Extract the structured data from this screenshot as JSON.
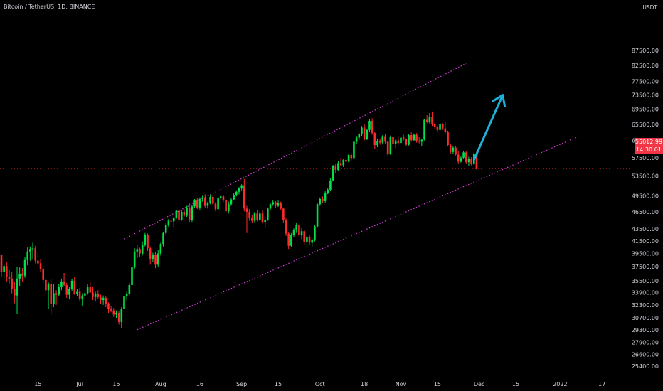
{
  "header": {
    "title": "Bitcoin / TetherUS, 1D, BINANCE",
    "quote_unit": "USDT"
  },
  "price_badge": {
    "price": "55012.99",
    "countdown": "14:30:01"
  },
  "colors": {
    "up": "#00e04a",
    "down": "#ff2b2b",
    "channel": "#d43fd8",
    "arrow": "#1fb0d8",
    "background": "#000000"
  },
  "chart_data": {
    "type": "candlestick",
    "symbol": "Bitcoin / TetherUS",
    "interval": "1D",
    "exchange": "BINANCE",
    "quote": "USDT",
    "yaxis_ticks": [
      87500,
      82500,
      77500,
      73500,
      69500,
      65500,
      61500,
      57500,
      53500,
      49500,
      46500,
      43500,
      41500,
      39500,
      37500,
      35500,
      33900,
      32300,
      30700,
      29300,
      27900,
      26600,
      25400
    ],
    "xaxis_ticks": [
      {
        "label": "15",
        "date": "2021-06-15"
      },
      {
        "label": "Jul",
        "date": "2021-07-01"
      },
      {
        "label": "15",
        "date": "2021-07-15"
      },
      {
        "label": "Aug",
        "date": "2021-08-01"
      },
      {
        "label": "16",
        "date": "2021-08-16"
      },
      {
        "label": "Sep",
        "date": "2021-09-01"
      },
      {
        "label": "15",
        "date": "2021-09-15"
      },
      {
        "label": "Oct",
        "date": "2021-10-01"
      },
      {
        "label": "18",
        "date": "2021-10-18"
      },
      {
        "label": "Nov",
        "date": "2021-11-01"
      },
      {
        "label": "15",
        "date": "2021-11-15"
      },
      {
        "label": "Dec",
        "date": "2021-12-01"
      },
      {
        "label": "15",
        "date": "2021-12-15"
      },
      {
        "label": "2022",
        "date": "2022-01-01"
      },
      {
        "label": "17",
        "date": "2022-01-17"
      }
    ],
    "start_date": "2021-06-01",
    "last_price": 55012.99,
    "candles": [
      [
        39250,
        39300,
        36000,
        36700
      ],
      [
        36700,
        37900,
        35800,
        37600
      ],
      [
        37600,
        38200,
        35400,
        36000
      ],
      [
        36000,
        37000,
        35000,
        35800
      ],
      [
        35800,
        36800,
        33800,
        34400
      ],
      [
        34400,
        35400,
        32500,
        33500
      ],
      [
        33500,
        37500,
        31200,
        35800
      ],
      [
        35800,
        37400,
        34800,
        36500
      ],
      [
        36500,
        37300,
        35400,
        36200
      ],
      [
        36200,
        39000,
        35900,
        38500
      ],
      [
        38500,
        40500,
        37700,
        39800
      ],
      [
        39800,
        40600,
        38400,
        40200
      ],
      [
        40200,
        41200,
        38600,
        40300
      ],
      [
        40300,
        40700,
        38000,
        38400
      ],
      [
        38400,
        39800,
        37500,
        38000
      ],
      [
        38000,
        38600,
        36800,
        37200
      ],
      [
        37200,
        37600,
        35200,
        35600
      ],
      [
        35600,
        35900,
        33800,
        34200
      ],
      [
        34200,
        35300,
        31800,
        35000
      ],
      [
        35000,
        35800,
        31200,
        32400
      ],
      [
        32400,
        35000,
        32000,
        33800
      ],
      [
        33800,
        34200,
        32300,
        33600
      ],
      [
        33600,
        35000,
        33400,
        34600
      ],
      [
        34600,
        35800,
        34200,
        35400
      ],
      [
        35400,
        36600,
        34800,
        34900
      ],
      [
        34900,
        35200,
        33200,
        33600
      ],
      [
        33600,
        34600,
        33000,
        34400
      ],
      [
        34400,
        35800,
        34100,
        35500
      ],
      [
        35500,
        36000,
        33600,
        33700
      ],
      [
        33700,
        34400,
        33400,
        34000
      ],
      [
        34000,
        34500,
        32700,
        33100
      ],
      [
        33100,
        33800,
        32200,
        33500
      ],
      [
        33500,
        34200,
        33000,
        33800
      ],
      [
        33800,
        35000,
        33600,
        34600
      ],
      [
        34600,
        35300,
        33800,
        33900
      ],
      [
        33900,
        34600,
        32900,
        33300
      ],
      [
        33300,
        34000,
        32800,
        33700
      ],
      [
        33700,
        34200,
        33100,
        33300
      ],
      [
        33300,
        33600,
        32400,
        32900
      ],
      [
        32900,
        33500,
        32300,
        33200
      ],
      [
        33200,
        33400,
        32000,
        32400
      ],
      [
        32400,
        32600,
        31300,
        31800
      ],
      [
        31800,
        32200,
        31400,
        31600
      ],
      [
        31600,
        31900,
        30800,
        31100
      ],
      [
        31100,
        31600,
        30700,
        31300
      ],
      [
        31300,
        31500,
        29900,
        30200
      ],
      [
        30200,
        32000,
        29500,
        31800
      ],
      [
        31800,
        33600,
        31600,
        33400
      ],
      [
        33400,
        34000,
        32900,
        33700
      ],
      [
        33700,
        35200,
        33500,
        34900
      ],
      [
        34900,
        37800,
        34600,
        37400
      ],
      [
        37400,
        40300,
        37200,
        39800
      ],
      [
        39800,
        40800,
        38800,
        40200
      ],
      [
        40200,
        40400,
        38900,
        39500
      ],
      [
        39500,
        41400,
        39200,
        40900
      ],
      [
        40900,
        42800,
        40600,
        42500
      ],
      [
        42500,
        42700,
        39900,
        40300
      ],
      [
        40300,
        40600,
        37800,
        38600
      ],
      [
        38600,
        39600,
        38200,
        39300
      ],
      [
        39300,
        39800,
        37300,
        37800
      ],
      [
        37800,
        40000,
        37500,
        39500
      ],
      [
        39500,
        41200,
        39200,
        41000
      ],
      [
        41000,
        43000,
        40600,
        42800
      ],
      [
        42800,
        44600,
        42400,
        44200
      ],
      [
        44200,
        45200,
        43800,
        44900
      ],
      [
        44900,
        45600,
        44400,
        44800
      ],
      [
        44800,
        45600,
        43700,
        45400
      ],
      [
        45400,
        46900,
        45200,
        46700
      ],
      [
        46700,
        47200,
        44800,
        45100
      ],
      [
        45100,
        46800,
        44900,
        46500
      ],
      [
        46500,
        47000,
        45600,
        45800
      ],
      [
        45800,
        47600,
        45600,
        47300
      ],
      [
        47300,
        48100,
        44700,
        45000
      ],
      [
        45000,
        47800,
        44700,
        47500
      ],
      [
        47500,
        48900,
        47200,
        48600
      ],
      [
        48600,
        49100,
        47000,
        47300
      ],
      [
        47300,
        49200,
        46900,
        48900
      ],
      [
        48900,
        49500,
        48400,
        49200
      ],
      [
        49200,
        49800,
        47300,
        47600
      ],
      [
        47600,
        48400,
        47100,
        48200
      ],
      [
        48200,
        49800,
        47900,
        49300
      ],
      [
        49300,
        49600,
        47800,
        48000
      ],
      [
        48000,
        48300,
        46600,
        47000
      ],
      [
        47000,
        49400,
        46800,
        49100
      ],
      [
        49100,
        49700,
        48800,
        49400
      ],
      [
        49400,
        49600,
        48300,
        48700
      ],
      [
        48700,
        48900,
        46400,
        46600
      ],
      [
        46600,
        48400,
        46200,
        47900
      ],
      [
        47900,
        49100,
        47600,
        48800
      ],
      [
        48800,
        50000,
        48600,
        49600
      ],
      [
        49600,
        50600,
        49400,
        50300
      ],
      [
        50300,
        51200,
        49800,
        51000
      ],
      [
        51000,
        51800,
        50600,
        51600
      ],
      [
        51600,
        52900,
        46600,
        47100
      ],
      [
        47100,
        47600,
        42800,
        46500
      ],
      [
        46500,
        47000,
        44900,
        45400
      ],
      [
        45400,
        45900,
        44500,
        44900
      ],
      [
        44900,
        46500,
        44600,
        46200
      ],
      [
        46200,
        46900,
        44800,
        45100
      ],
      [
        45100,
        46600,
        44900,
        46200
      ],
      [
        46200,
        46800,
        44400,
        44700
      ],
      [
        44700,
        45600,
        43600,
        45100
      ],
      [
        45100,
        47300,
        44900,
        47100
      ],
      [
        47100,
        48200,
        46800,
        47900
      ],
      [
        47900,
        48600,
        47600,
        48300
      ],
      [
        48300,
        48500,
        47200,
        47600
      ],
      [
        47600,
        48600,
        47400,
        48200
      ],
      [
        48200,
        48400,
        46800,
        47100
      ],
      [
        47100,
        47300,
        44600,
        45000
      ],
      [
        45000,
        45400,
        42300,
        42700
      ],
      [
        42700,
        43000,
        40200,
        40700
      ],
      [
        40700,
        42800,
        40500,
        42500
      ],
      [
        42500,
        43600,
        42100,
        43300
      ],
      [
        43300,
        44600,
        42800,
        44200
      ],
      [
        44200,
        44600,
        42100,
        42400
      ],
      [
        42400,
        43600,
        41800,
        43100
      ],
      [
        43100,
        43400,
        40900,
        41300
      ],
      [
        41300,
        42500,
        40600,
        42100
      ],
      [
        42100,
        42400,
        40800,
        41200
      ],
      [
        41200,
        41900,
        40500,
        41600
      ],
      [
        41600,
        44200,
        41400,
        43900
      ],
      [
        43900,
        48200,
        43700,
        47900
      ],
      [
        47900,
        49200,
        47600,
        48900
      ],
      [
        48900,
        49400,
        48100,
        48500
      ],
      [
        48500,
        50400,
        48200,
        50100
      ],
      [
        50100,
        51000,
        49800,
        50700
      ],
      [
        50700,
        53000,
        50500,
        52600
      ],
      [
        52600,
        55900,
        52400,
        55600
      ],
      [
        55600,
        56200,
        54200,
        54800
      ],
      [
        54800,
        56700,
        54500,
        56300
      ],
      [
        56300,
        57400,
        55600,
        55800
      ],
      [
        55800,
        57200,
        55400,
        57000
      ],
      [
        57000,
        57600,
        56200,
        56600
      ],
      [
        56600,
        58300,
        56400,
        58100
      ],
      [
        58100,
        58600,
        56900,
        57400
      ],
      [
        57400,
        61500,
        57100,
        61200
      ],
      [
        61200,
        62600,
        60700,
        62200
      ],
      [
        62200,
        63400,
        61600,
        63000
      ],
      [
        63000,
        65100,
        62600,
        64700
      ],
      [
        64700,
        65600,
        61500,
        61900
      ],
      [
        61900,
        64400,
        61600,
        64100
      ],
      [
        64100,
        66800,
        63700,
        66400
      ],
      [
        66400,
        67100,
        62900,
        63300
      ],
      [
        63300,
        63700,
        59600,
        60400
      ],
      [
        60400,
        61800,
        59900,
        61400
      ],
      [
        61400,
        61800,
        60500,
        61000
      ],
      [
        61000,
        62800,
        60600,
        62400
      ],
      [
        62400,
        63100,
        60800,
        61200
      ],
      [
        61200,
        61500,
        58000,
        58400
      ],
      [
        58400,
        62700,
        58100,
        62300
      ],
      [
        62300,
        62600,
        60400,
        60700
      ],
      [
        60700,
        61800,
        59700,
        61500
      ],
      [
        61500,
        62300,
        60500,
        60900
      ],
      [
        60900,
        62500,
        60600,
        62200
      ],
      [
        62200,
        62900,
        61500,
        61800
      ],
      [
        61800,
        62000,
        60200,
        60500
      ],
      [
        60500,
        63100,
        60300,
        62800
      ],
      [
        62800,
        63500,
        61200,
        61600
      ],
      [
        61600,
        63200,
        61300,
        62900
      ],
      [
        62900,
        63300,
        61000,
        61400
      ],
      [
        61400,
        62300,
        60800,
        61200
      ],
      [
        61200,
        61900,
        60200,
        61700
      ],
      [
        61700,
        66900,
        61500,
        66700
      ],
      [
        66700,
        67900,
        65800,
        66200
      ],
      [
        66200,
        68500,
        65700,
        67400
      ],
      [
        67400,
        68900,
        65100,
        65500
      ],
      [
        65500,
        66200,
        64400,
        64800
      ],
      [
        64800,
        65200,
        63500,
        64100
      ],
      [
        64100,
        65900,
        63700,
        65500
      ],
      [
        65500,
        65800,
        64100,
        64500
      ],
      [
        64500,
        66000,
        63200,
        63600
      ],
      [
        63600,
        63900,
        60100,
        60400
      ],
      [
        60400,
        60800,
        58300,
        58800
      ],
      [
        58800,
        60200,
        58400,
        59800
      ],
      [
        59800,
        60100,
        58000,
        58200
      ],
      [
        58200,
        58900,
        56200,
        56600
      ],
      [
        56600,
        57900,
        56400,
        57500
      ],
      [
        57500,
        59100,
        57300,
        58700
      ],
      [
        58700,
        59000,
        56100,
        56500
      ],
      [
        56500,
        57700,
        55600,
        57300
      ],
      [
        57300,
        57600,
        55800,
        56100
      ],
      [
        56100,
        58700,
        55900,
        58400
      ],
      [
        58400,
        59100,
        54900,
        55013
      ]
    ],
    "channel_upper": [
      {
        "date": "2021-07-18",
        "price": 41800
      },
      {
        "date": "2021-11-26",
        "price": 83200
      }
    ],
    "channel_lower": [
      {
        "date": "2021-07-23",
        "price": 29300
      },
      {
        "date": "2022-01-08",
        "price": 62500
      }
    ],
    "arrow": [
      {
        "date": "2021-11-29",
        "price": 57000
      },
      {
        "date": "2021-12-10",
        "price": 73500
      }
    ],
    "grid": false,
    "legend": "none"
  }
}
